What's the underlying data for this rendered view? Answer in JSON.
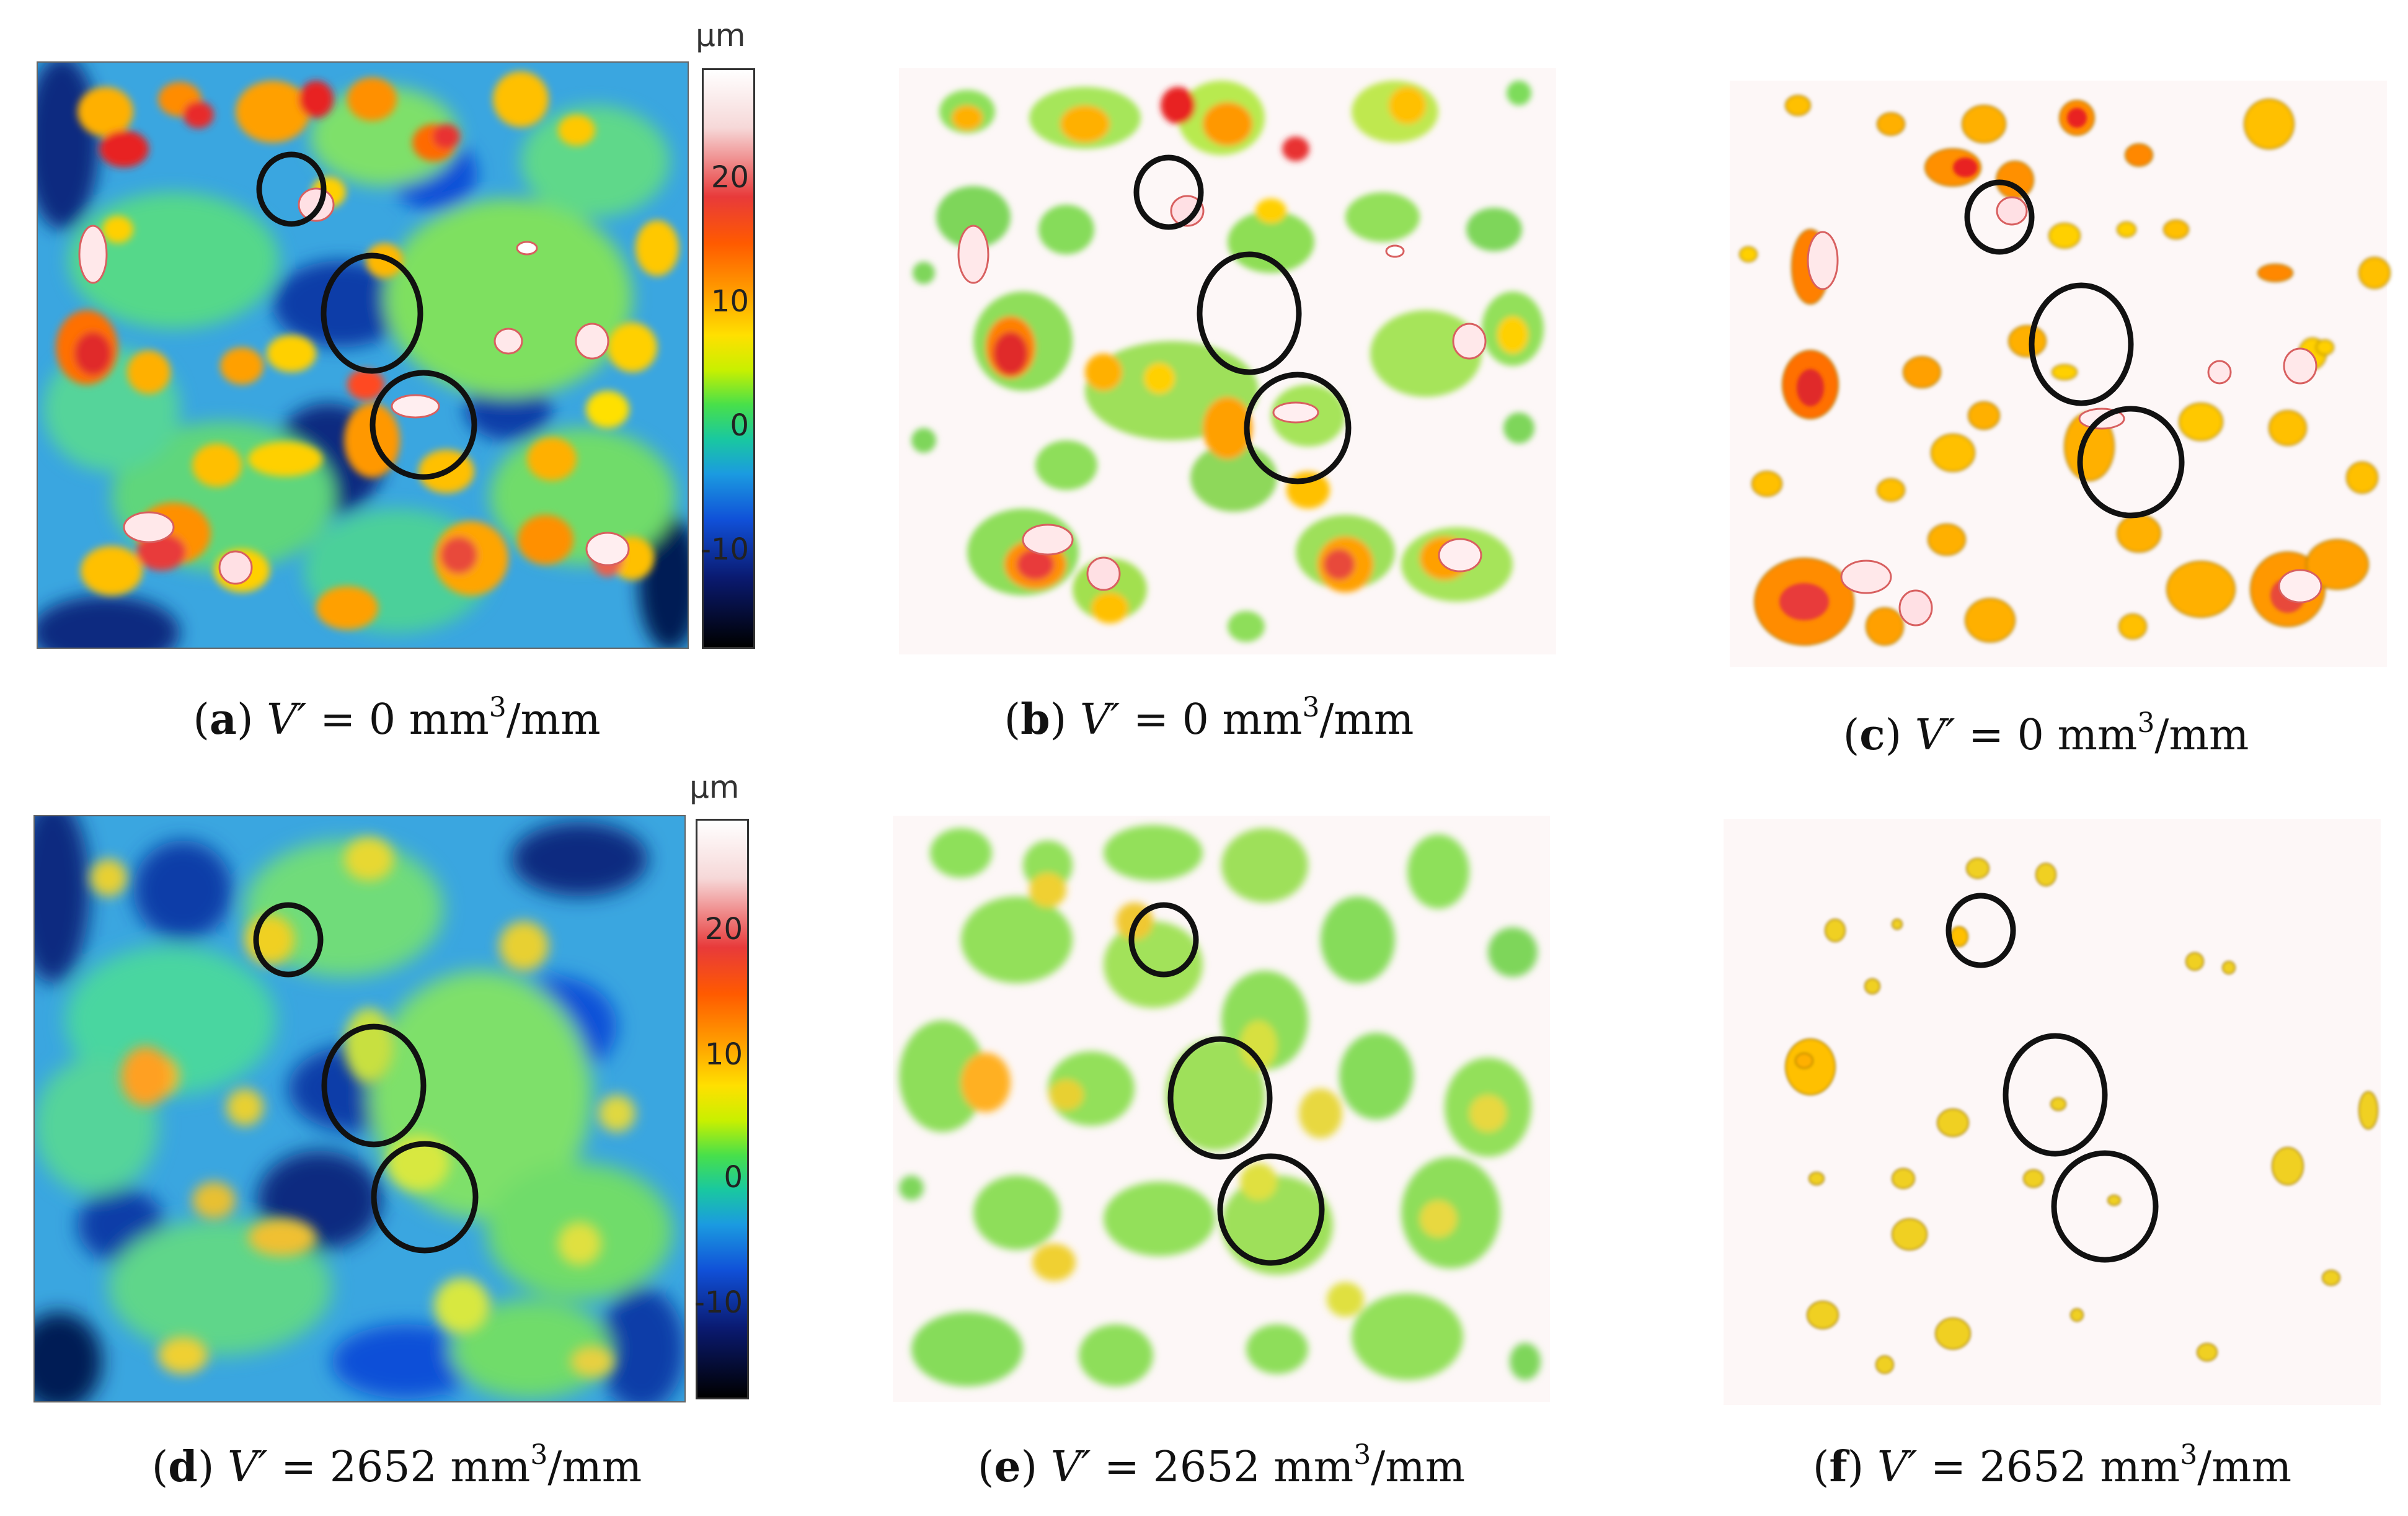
{
  "colors": {
    "background": "#ffffff",
    "map_base": "#2f8fdb",
    "map_mid": "#42d3b0",
    "outline": "#111111"
  },
  "colorbar": {
    "unit": "µm",
    "ticks": [
      "20",
      "10",
      "0",
      "-10"
    ]
  },
  "panels": [
    {
      "letter": "a",
      "label_prefix": "V′ = ",
      "value": "0",
      "unit_base": "mm",
      "unit_exp": "3",
      "unit_tail": "/mm",
      "kind": "height-map"
    },
    {
      "letter": "b",
      "label_prefix": "V′ = ",
      "value": "0",
      "unit_base": "mm",
      "unit_exp": "3",
      "unit_tail": "/mm",
      "kind": "threshold-map"
    },
    {
      "letter": "c",
      "label_prefix": "V′ = ",
      "value": "0",
      "unit_base": "mm",
      "unit_exp": "3",
      "unit_tail": "/mm",
      "kind": "threshold-map"
    },
    {
      "letter": "d",
      "label_prefix": "V′ = ",
      "value": "2652",
      "unit_base": "mm",
      "unit_exp": "3",
      "unit_tail": "/mm",
      "kind": "height-map"
    },
    {
      "letter": "e",
      "label_prefix": "V′ = ",
      "value": "2652",
      "unit_base": "mm",
      "unit_exp": "3",
      "unit_tail": "/mm",
      "kind": "threshold-map"
    },
    {
      "letter": "f",
      "label_prefix": "V′ = ",
      "value": "2652",
      "unit_base": "mm",
      "unit_exp": "3",
      "unit_tail": "/mm",
      "kind": "threshold-map"
    }
  ]
}
